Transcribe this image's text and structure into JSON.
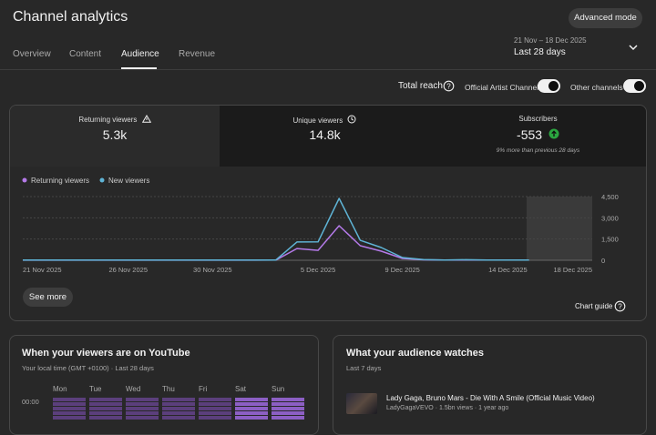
{
  "header": {
    "title": "Channel analytics",
    "advanced_mode": "Advanced mode",
    "tabs": [
      "Overview",
      "Content",
      "Audience",
      "Revenue"
    ],
    "date_range": {
      "range": "21 Nov – 18 Dec 2025",
      "period": "Last 28 days"
    }
  },
  "reach": {
    "label": "Total reach",
    "toggles": [
      "Official Artist Channel",
      "Other channels"
    ]
  },
  "metrics": [
    {
      "label": "Returning viewers",
      "value": "5.3k"
    },
    {
      "label": "Unique viewers",
      "value": "14.8k"
    },
    {
      "label": "Subscribers",
      "value": "-553",
      "note": "9% more than previous 28 days"
    }
  ],
  "chart_data": {
    "type": "line",
    "categories": [
      "21 Nov 2025",
      null,
      null,
      null,
      null,
      "26 Nov 2025",
      null,
      null,
      null,
      "30 Nov 2025",
      null,
      null,
      null,
      null,
      "5 Dec 2025",
      null,
      null,
      null,
      "9 Dec 2025",
      null,
      null,
      null,
      null,
      "14 Dec 2025",
      null,
      null,
      null,
      "18 Dec 2025"
    ],
    "series": [
      {
        "name": "Returning viewers",
        "color": "#b47ae8",
        "values": [
          5,
          5,
          5,
          5,
          5,
          5,
          5,
          5,
          5,
          5,
          5,
          5,
          10,
          830,
          700,
          2440,
          1030,
          640,
          130,
          30,
          10,
          20,
          10,
          10,
          10,
          null,
          null,
          null
        ]
      },
      {
        "name": "New viewers",
        "color": "#5fb4d6",
        "values": [
          10,
          10,
          10,
          10,
          10,
          10,
          10,
          10,
          10,
          10,
          10,
          10,
          20,
          1290,
          1300,
          4370,
          1410,
          900,
          190,
          50,
          20,
          40,
          20,
          20,
          20,
          null,
          null,
          null
        ]
      }
    ],
    "ylim": [
      0,
      4500
    ],
    "yticks": [
      0,
      {
        "value": 1500,
        "label": "1,500"
      },
      {
        "value": 3000,
        "label": "3,000"
      },
      {
        "value": 4500,
        "label": "4,500"
      }
    ],
    "grid": true
  },
  "see_more": "See more",
  "chart_guide": "Chart guide",
  "viewer_times": {
    "title": "When your viewers are on YouTube",
    "subtitle": "Your local time (GMT +0100) · Last 28 days",
    "days": [
      "Mon",
      "Tue",
      "Wed",
      "Thu",
      "Fri",
      "Sat",
      "Sun"
    ],
    "hours": [
      "00:00"
    ]
  },
  "audience_watches": {
    "title": "What your audience watches",
    "subtitle": "Last 7 days",
    "videos": [
      {
        "title": "Lady Gaga, Bruno Mars - Die With A Smile (Official Music Video)",
        "meta": "LadyGagaVEVO · 1.5bn views · 1 year ago"
      }
    ]
  }
}
